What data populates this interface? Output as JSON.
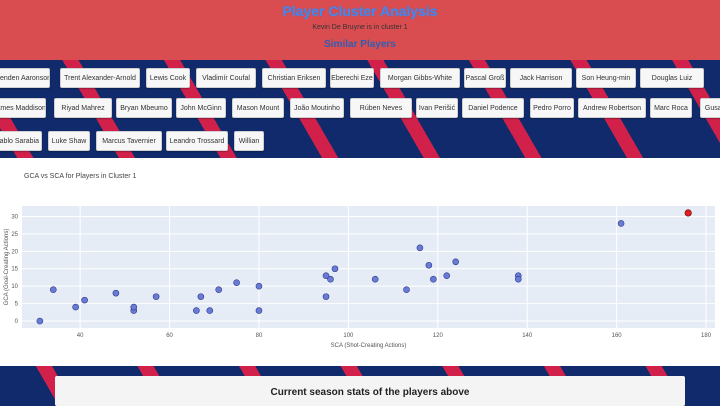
{
  "header": {
    "title": "Player Cluster Analysis",
    "subtitle": "Kevin De Bruyne is in cluster 1",
    "similar_title": "Similar Players"
  },
  "players": {
    "row1": [
      "Brenden Aaronson",
      "Trent Alexander-Arnold",
      "Lewis Cook",
      "Vladimír Coufal",
      "Christian Eriksen",
      "Eberechi Eze",
      "Morgan Gibbs-White",
      "Pascal Groß",
      "Jack Harrison",
      "Son Heung-min",
      "Douglas Luiz"
    ],
    "row2": [
      "James Maddison",
      "Riyad Mahrez",
      "Bryan Mbeumo",
      "John McGinn",
      "Mason Mount",
      "João Moutinho",
      "Rúben Neves",
      "Ivan Perišić",
      "Daniel Podence",
      "Pedro Porro",
      "Andrew Robertson",
      "Marc Roca",
      "Gusay"
    ],
    "row3": [
      "Pablo Sarabia",
      "Luke Shaw",
      "Marcus Tavernier",
      "Leandro Trossard",
      "Willian"
    ]
  },
  "chart_data": {
    "type": "scatter",
    "title": "GCA vs SCA for Players in Cluster 1",
    "xlabel": "SCA (Shot-Creating Actions)",
    "ylabel": "GCA (Goal-Creating Actions)",
    "xlim": [
      27,
      182
    ],
    "ylim": [
      -2,
      33
    ],
    "xticks": [
      40,
      60,
      80,
      100,
      120,
      140,
      160,
      180
    ],
    "yticks": [
      0,
      5,
      10,
      15,
      20,
      25,
      30
    ],
    "grid": true,
    "points": [
      {
        "x": 31,
        "y": 0
      },
      {
        "x": 34,
        "y": 9
      },
      {
        "x": 39,
        "y": 4
      },
      {
        "x": 41,
        "y": 6
      },
      {
        "x": 48,
        "y": 8
      },
      {
        "x": 52,
        "y": 3
      },
      {
        "x": 52,
        "y": 4
      },
      {
        "x": 57,
        "y": 7
      },
      {
        "x": 66,
        "y": 3
      },
      {
        "x": 67,
        "y": 7
      },
      {
        "x": 69,
        "y": 3
      },
      {
        "x": 71,
        "y": 9
      },
      {
        "x": 75,
        "y": 11
      },
      {
        "x": 80,
        "y": 10
      },
      {
        "x": 80,
        "y": 3
      },
      {
        "x": 95,
        "y": 13
      },
      {
        "x": 95,
        "y": 7
      },
      {
        "x": 96,
        "y": 12
      },
      {
        "x": 97,
        "y": 15
      },
      {
        "x": 106,
        "y": 12
      },
      {
        "x": 113,
        "y": 9
      },
      {
        "x": 116,
        "y": 21
      },
      {
        "x": 118,
        "y": 16
      },
      {
        "x": 119,
        "y": 12
      },
      {
        "x": 122,
        "y": 13
      },
      {
        "x": 124,
        "y": 17
      },
      {
        "x": 138,
        "y": 13
      },
      {
        "x": 138,
        "y": 12
      },
      {
        "x": 161,
        "y": 28
      }
    ],
    "highlight": {
      "x": 176,
      "y": 31
    },
    "colors": {
      "point": "#6a7bd6",
      "highlight": "#e02020",
      "plot_bg": "#e5ecf6"
    }
  },
  "stats": {
    "title": "Current season stats of the players above"
  }
}
